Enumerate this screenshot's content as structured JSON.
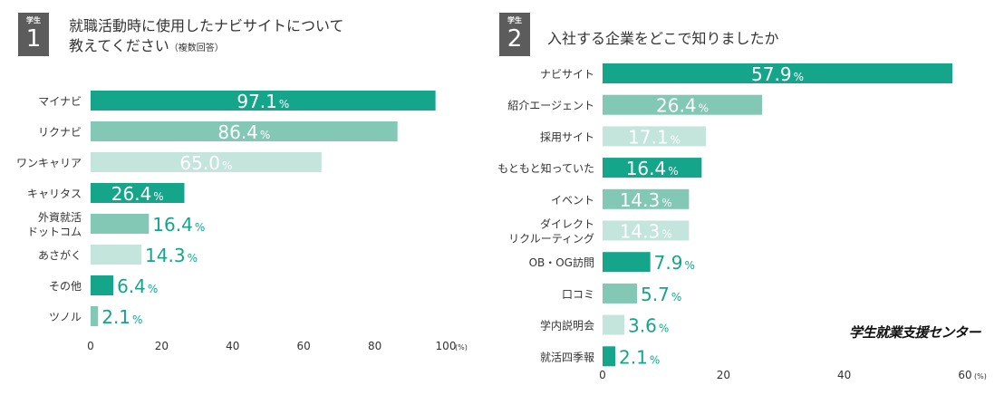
{
  "chart_data": [
    {
      "type": "bar",
      "orientation": "horizontal",
      "badge": {
        "label": "学生",
        "number": "1"
      },
      "title_lines": [
        "就職活動時に使用したナビサイトについて",
        "教えてください"
      ],
      "title_note": "（複数回答）",
      "categories": [
        "マイナビ",
        "リクナビ",
        "ワンキャリア",
        "キャリタス",
        "外資就活\nドットコム",
        "あさがく",
        "その他",
        "ツノル"
      ],
      "values": [
        97.1,
        86.4,
        65.0,
        26.4,
        16.4,
        14.3,
        6.4,
        2.1
      ],
      "value_labels": [
        "97.1",
        "86.4",
        "65.0",
        "26.4",
        "16.4",
        "14.3",
        "6.4",
        "2.1"
      ],
      "unit_suffix": "%",
      "bar_colors": [
        "#14a58a",
        "#82c8b4",
        "#c4e5dc",
        "#14a58a",
        "#82c8b4",
        "#c4e5dc",
        "#14a58a",
        "#82c8b4"
      ],
      "xlim": [
        0,
        100
      ],
      "xticks": [
        0,
        20,
        40,
        60,
        80,
        100
      ],
      "xtick_labels": [
        "0",
        "20",
        "40",
        "60",
        "80",
        "100"
      ],
      "x_unit": "(%)"
    },
    {
      "type": "bar",
      "orientation": "horizontal",
      "badge": {
        "label": "学生",
        "number": "2"
      },
      "title_lines": [
        "入社する企業をどこで知りましたか"
      ],
      "title_note": "",
      "categories": [
        "ナビサイト",
        "紹介エージェント",
        "採用サイト",
        "もともと知っていた",
        "イベント",
        "ダイレクト\nリクルーティング",
        "OB・OG訪問",
        "口コミ",
        "学内説明会",
        "就活四季報"
      ],
      "values": [
        57.9,
        26.4,
        17.1,
        16.4,
        14.3,
        14.3,
        7.9,
        5.7,
        3.6,
        2.1
      ],
      "value_labels": [
        "57.9",
        "26.4",
        "17.1",
        "16.4",
        "14.3",
        "14.3",
        "7.9",
        "5.7",
        "3.6",
        "2.1"
      ],
      "unit_suffix": "%",
      "bar_colors": [
        "#14a58a",
        "#82c8b4",
        "#c4e5dc",
        "#14a58a",
        "#82c8b4",
        "#c4e5dc",
        "#14a58a",
        "#82c8b4",
        "#c4e5dc",
        "#14a58a"
      ],
      "xlim": [
        0,
        60
      ],
      "xticks": [
        0,
        20,
        40,
        60
      ],
      "xtick_labels": [
        "0",
        "20",
        "40",
        "60"
      ],
      "x_unit": "(%)"
    }
  ],
  "brand": "学生就業支援センター",
  "colors": {
    "badge_bg": "#5c5c5c",
    "label_on_bar": "#ffffff",
    "label_outside_bar": "#14a58a",
    "axis_text": "#333333"
  }
}
